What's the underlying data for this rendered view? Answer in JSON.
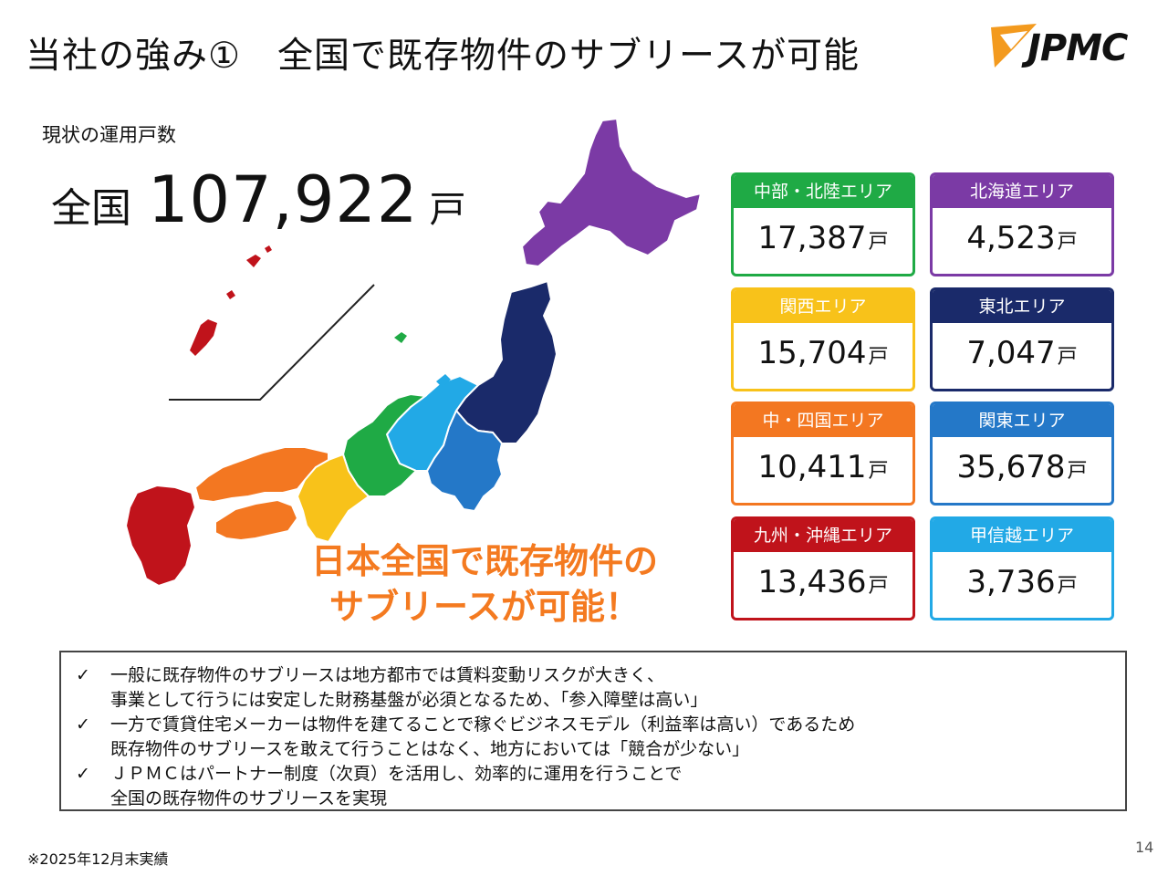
{
  "title": "当社の強み①　全国で既存物件のサブリースが可能",
  "logo": {
    "text": "JPMC",
    "orange": "#f39a1e"
  },
  "summary": {
    "subtitle": "現状の運用戸数",
    "prefix": "全国",
    "total": "107,922",
    "unit": "戸"
  },
  "slogan": [
    "日本全国で既存物件の",
    "サブリースが可能！"
  ],
  "areas": [
    {
      "name": "中部・北陸エリア",
      "value": "17,387",
      "unit": "戸",
      "color": "#1faa45"
    },
    {
      "name": "北海道エリア",
      "value": "4,523",
      "unit": "戸",
      "color": "#7b3aa5"
    },
    {
      "name": "関西エリア",
      "value": "15,704",
      "unit": "戸",
      "color": "#f8c21a"
    },
    {
      "name": "東北エリア",
      "value": "7,047",
      "unit": "戸",
      "color": "#1a2a6a"
    },
    {
      "name": "中・四国エリア",
      "value": "10,411",
      "unit": "戸",
      "color": "#f37721"
    },
    {
      "name": "関東エリア",
      "value": "35,678",
      "unit": "戸",
      "color": "#2478c8"
    },
    {
      "name": "九州・沖縄エリア",
      "value": "13,436",
      "unit": "戸",
      "color": "#c0131b"
    },
    {
      "name": "甲信越エリア",
      "value": "3,736",
      "unit": "戸",
      "color": "#22a9e6"
    }
  ],
  "bullets": [
    {
      "check": "✓",
      "lines": [
        "一般に既存物件のサブリースは地方都市では賃料変動リスクが大きく、",
        "事業として行うには安定した財務基盤が必須となるため、「参入障壁は高い」"
      ]
    },
    {
      "check": "✓",
      "lines": [
        "一方で賃貸住宅メーカーは物件を建てることで稼ぐビジネスモデル（利益率は高い）であるため",
        "既存物件のサブリースを敢えて行うことはなく、地方においては「競合が少ない」"
      ]
    },
    {
      "check": "✓",
      "lines": [
        "ＪＰＭＣはパートナー制度（次頁）を活用し、効率的に運用を行うことで",
        "全国の既存物件のサブリースを実現"
      ]
    }
  ],
  "footnote": "※2025年12月末実績",
  "page_number": "14"
}
